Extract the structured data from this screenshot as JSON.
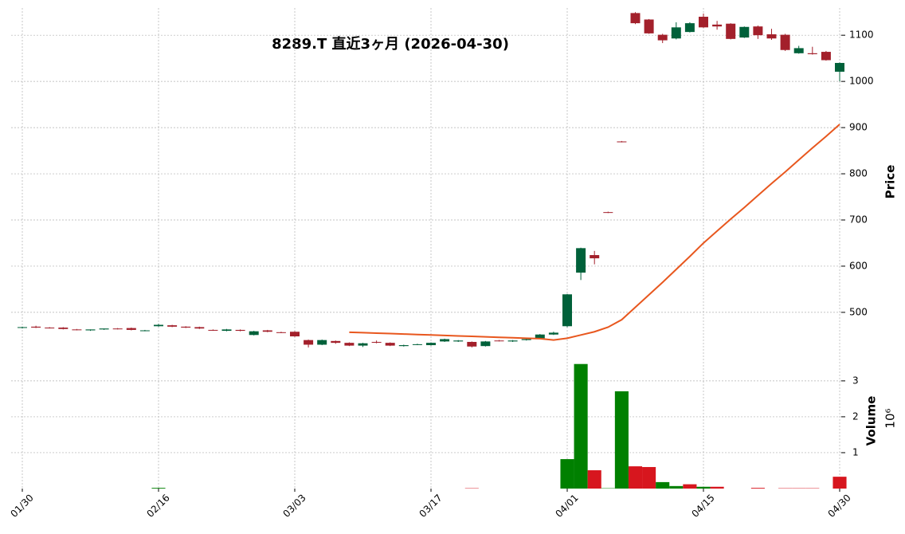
{
  "chart_data": [
    {
      "type": "candlestick",
      "title": "8289.T  直近3ヶ月  (2026-04-30)",
      "ylabel": "Price",
      "open": [
        467,
        469,
        467,
        467,
        463,
        461,
        463,
        465,
        466,
        460,
        470,
        472,
        469,
        468,
        462,
        460,
        462,
        451,
        461,
        457,
        458,
        440,
        430,
        438,
        434,
        428,
        436,
        434,
        427,
        430,
        429,
        437,
        437,
        436,
        427,
        439,
        437,
        440,
        444,
        452,
        470,
        586,
        624,
        717,
        870,
        1148,
        1134,
        1101,
        1093,
        1107,
        1140,
        1123,
        1125,
        1095,
        1119,
        1102,
        1101,
        1061,
        1061,
        1064,
        1021
      ],
      "high": [
        469,
        471,
        468,
        468,
        464,
        463,
        465,
        466,
        467,
        462,
        475,
        473,
        470,
        469,
        463,
        464,
        463,
        460,
        462,
        458,
        459,
        441,
        441,
        439,
        435,
        434,
        439,
        435,
        430,
        432,
        435,
        443,
        440,
        437,
        438,
        440,
        440,
        443,
        453,
        458,
        540,
        640,
        633,
        718,
        871,
        1150,
        1135,
        1103,
        1128,
        1128,
        1147,
        1131,
        1126,
        1119,
        1121,
        1114,
        1103,
        1077,
        1075,
        1066,
        1041
      ],
      "low": [
        465,
        466,
        465,
        463,
        461,
        460,
        462,
        463,
        461,
        459,
        469,
        468,
        466,
        464,
        460,
        459,
        459,
        450,
        457,
        455,
        447,
        424,
        429,
        432,
        427,
        425,
        433,
        427,
        426,
        429,
        428,
        436,
        436,
        424,
        426,
        437,
        436,
        439,
        443,
        451,
        468,
        570,
        604,
        715,
        868,
        1124,
        1103,
        1083,
        1091,
        1106,
        1116,
        1112,
        1091,
        1094,
        1092,
        1090,
        1066,
        1060,
        1058,
        1045,
        1000
      ],
      "close": [
        468,
        467,
        466,
        464,
        462,
        463,
        465,
        464,
        462,
        461,
        473,
        469,
        467,
        465,
        461,
        463,
        460,
        459,
        458,
        456,
        448,
        430,
        440,
        434,
        428,
        433,
        435,
        428,
        429,
        431,
        434,
        442,
        439,
        426,
        437,
        438,
        439,
        442,
        452,
        456,
        539,
        639,
        617,
        716,
        869,
        1126,
        1104,
        1089,
        1117,
        1126,
        1117,
        1119,
        1092,
        1118,
        1100,
        1093,
        1068,
        1072,
        1059,
        1046,
        1040
      ],
      "up_color": "#00613a",
      "down_color": "#a3202b",
      "lines": [
        {
          "color": "#e8571e",
          "values": [
            null,
            null,
            null,
            null,
            null,
            null,
            null,
            null,
            null,
            null,
            null,
            null,
            null,
            null,
            null,
            null,
            null,
            null,
            null,
            null,
            null,
            null,
            null,
            null,
            457,
            456,
            455,
            454,
            453,
            452,
            451,
            450,
            449,
            448,
            447,
            446,
            445,
            444,
            443,
            440,
            444,
            451,
            458,
            468,
            484,
            511,
            538,
            565,
            593,
            621,
            650,
            676,
            702,
            727,
            753,
            779,
            804,
            830,
            856,
            881,
            907
          ]
        }
      ],
      "ylim": [
        417,
        1159
      ],
      "yticks": [
        500,
        600,
        700,
        800,
        900,
        1000,
        1100
      ],
      "grid": true
    },
    {
      "type": "bar",
      "ylabel": "Volume",
      "offset_label": "10⁶",
      "categories": [
        "01/30",
        null,
        null,
        null,
        null,
        null,
        null,
        null,
        null,
        null,
        "02/16",
        null,
        null,
        null,
        null,
        null,
        null,
        null,
        null,
        null,
        "03/03",
        null,
        null,
        null,
        null,
        null,
        null,
        null,
        null,
        null,
        "03/17",
        null,
        null,
        null,
        null,
        null,
        null,
        null,
        null,
        null,
        "04/01",
        null,
        null,
        null,
        null,
        null,
        null,
        null,
        null,
        null,
        "04/15",
        null,
        null,
        null,
        null,
        null,
        null,
        null,
        null,
        null,
        "04/30"
      ],
      "values": [
        0,
        0,
        0,
        0,
        0,
        0,
        0,
        0,
        0,
        0,
        0.02,
        0,
        0,
        0,
        0,
        0,
        0,
        0,
        0,
        0,
        0,
        0,
        0,
        0,
        0,
        0,
        0,
        0,
        0,
        0,
        0,
        0,
        0,
        0.01,
        0,
        0,
        0,
        0,
        0,
        0,
        0.82,
        3.47,
        0.51,
        0.01,
        2.71,
        0.62,
        0.6,
        0.18,
        0.07,
        0.12,
        0.05,
        0.05,
        0,
        0,
        0.02,
        0,
        0.01,
        0.01,
        0.01,
        0,
        0.33
      ],
      "colors": [
        "#008000",
        "#d7161e",
        "#d7161e",
        "#d7161e",
        "#d7161e",
        "#008000",
        "#008000",
        "#d7161e",
        "#d7161e",
        "#008000",
        "#008000",
        "#d7161e",
        "#d7161e",
        "#d7161e",
        "#d7161e",
        "#008000",
        "#d7161e",
        "#008000",
        "#d7161e",
        "#d7161e",
        "#d7161e",
        "#d7161e",
        "#008000",
        "#d7161e",
        "#d7161e",
        "#008000",
        "#d7161e",
        "#d7161e",
        "#008000",
        "#008000",
        "#008000",
        "#008000",
        "#008000",
        "#d7161e",
        "#008000",
        "#d7161e",
        "#008000",
        "#008000",
        "#008000",
        "#008000",
        "#008000",
        "#008000",
        "#d7161e",
        "#008000",
        "#008000",
        "#d7161e",
        "#d7161e",
        "#008000",
        "#008000",
        "#d7161e",
        "#008000",
        "#d7161e",
        "#d7161e",
        "#008000",
        "#d7161e",
        "#d7161e",
        "#d7161e",
        "#d7161e",
        "#d7161e",
        "#d7161e",
        "#d7161e"
      ],
      "ylim": [
        0,
        3.73
      ],
      "yticks": [
        1,
        2,
        3
      ],
      "grid": true
    }
  ]
}
